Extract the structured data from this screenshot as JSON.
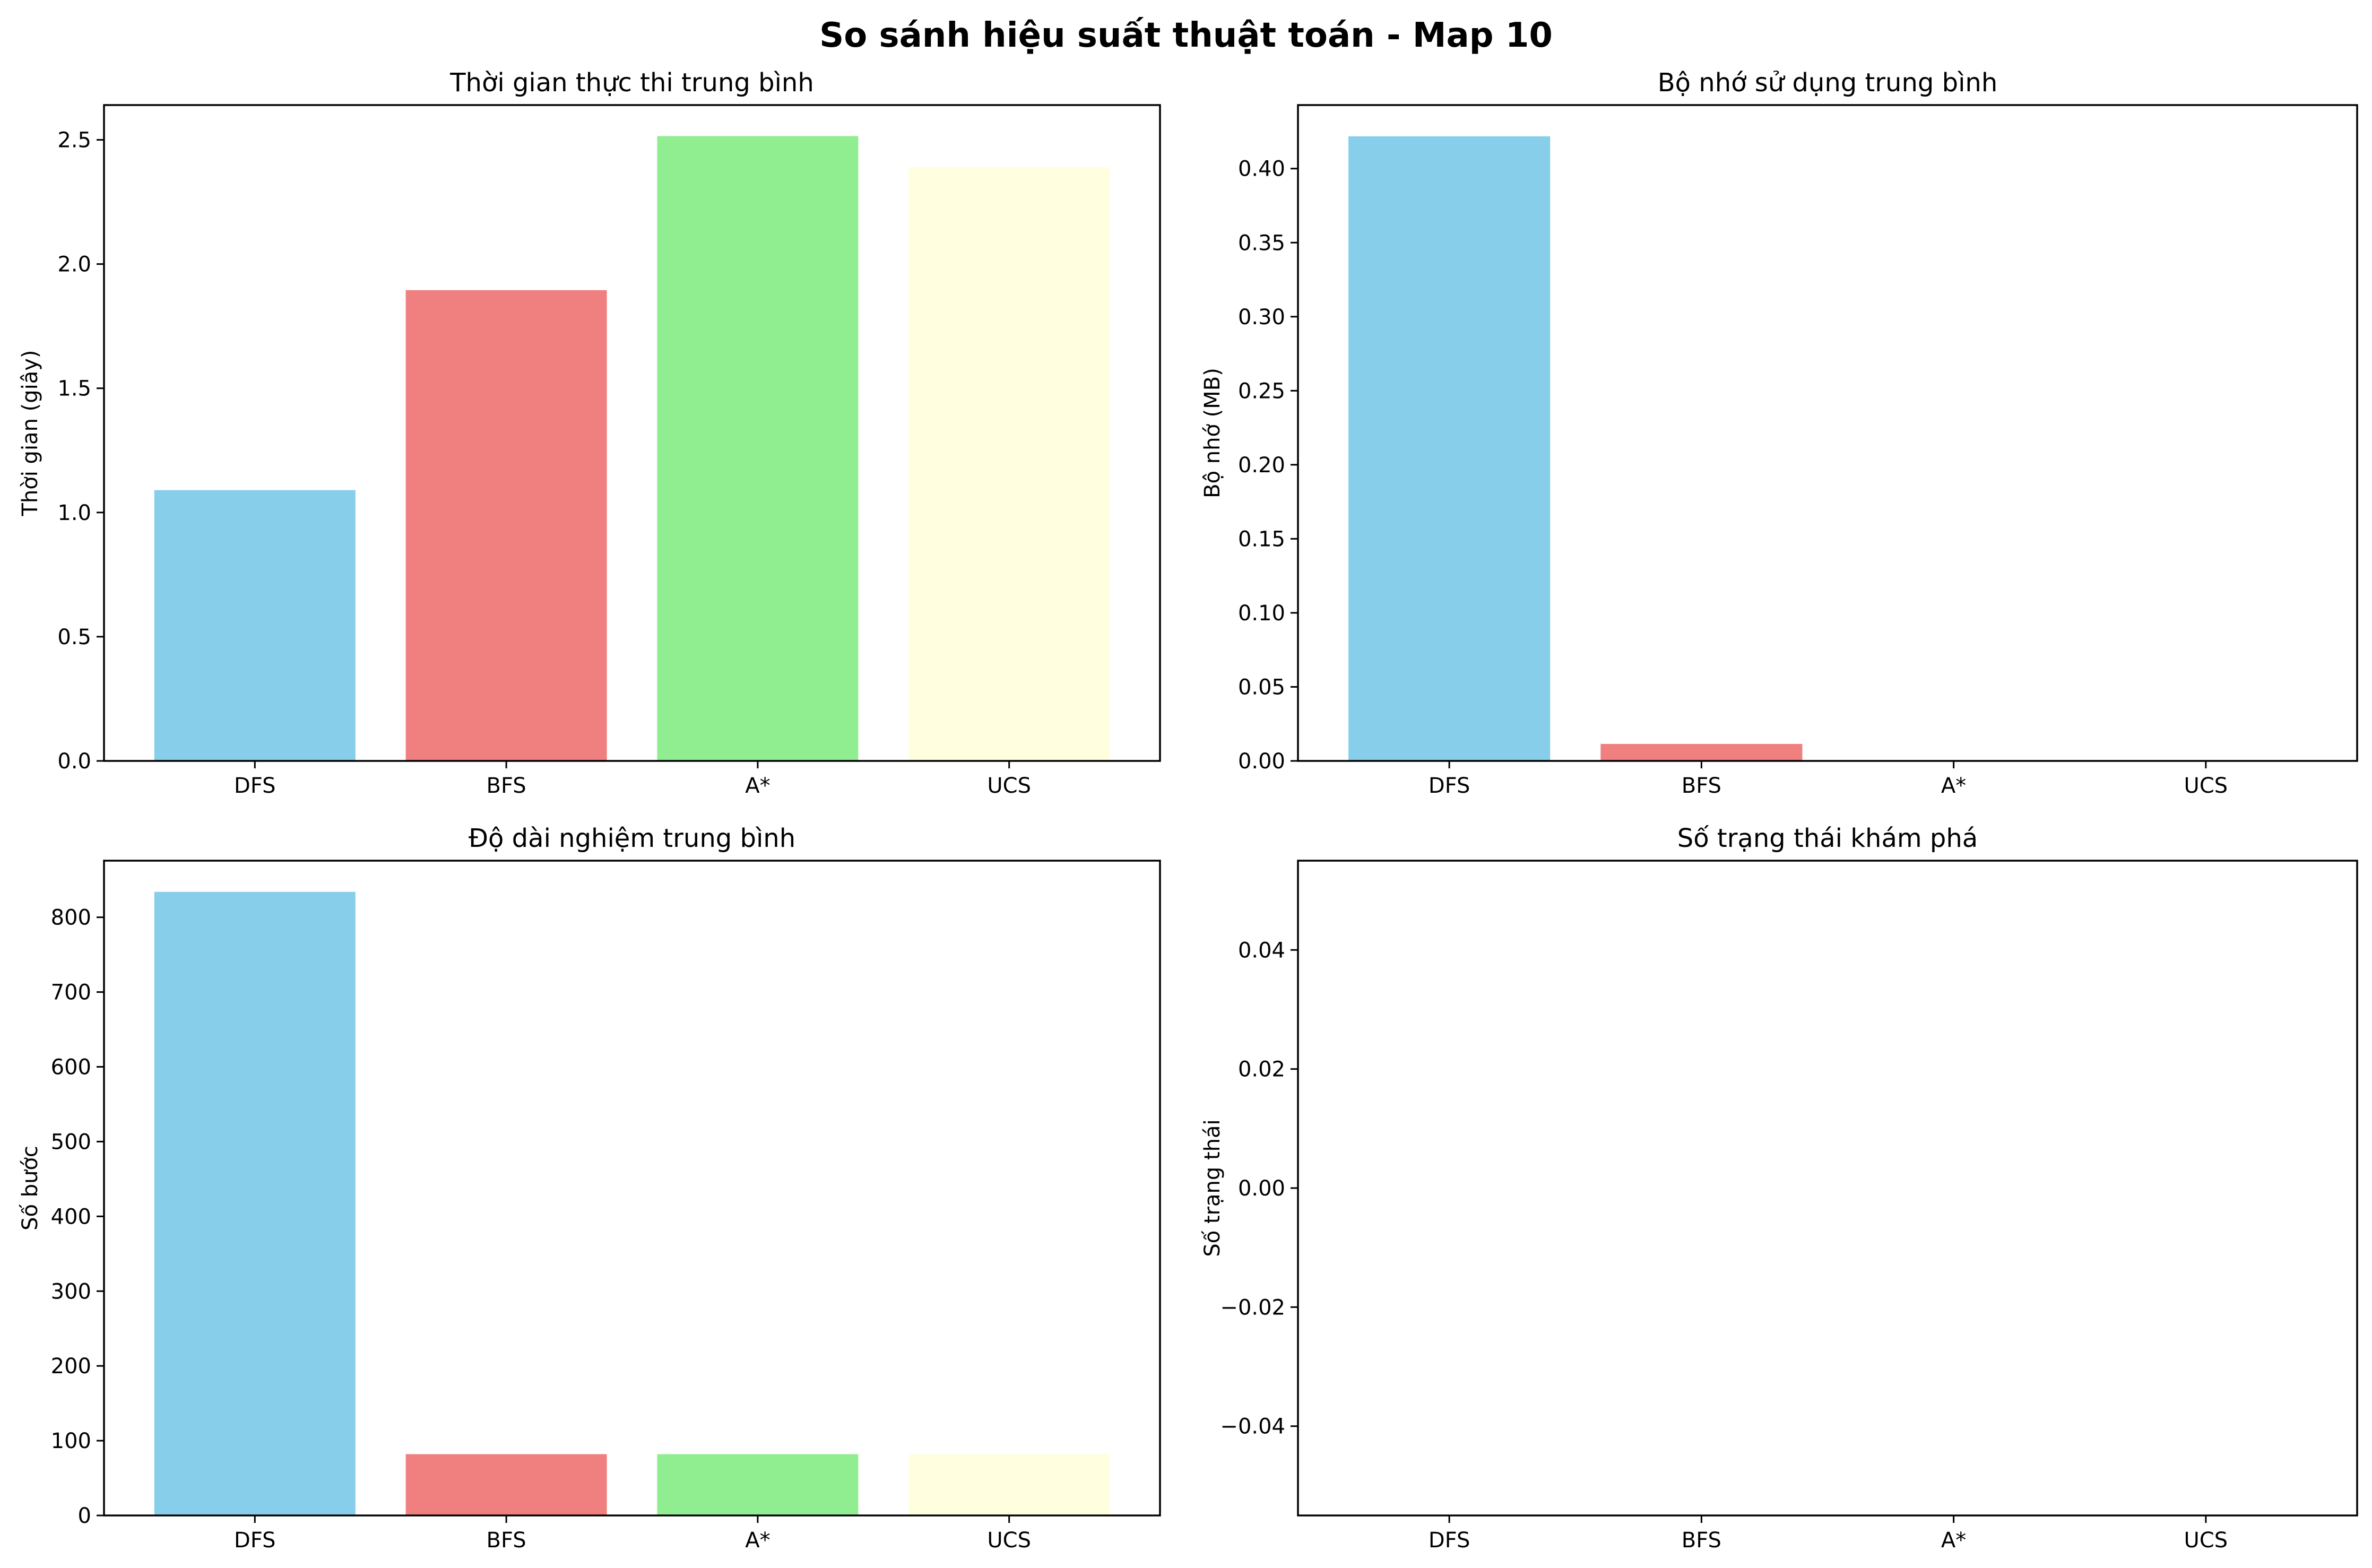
{
  "figure": {
    "title": "So sánh hiệu suất thuật toán - Map 10",
    "categories": [
      "DFS",
      "BFS",
      "A*",
      "UCS"
    ],
    "colors": [
      "#87CEEB",
      "#F08080",
      "#90EE90",
      "#FFFFE0"
    ]
  },
  "chart_data": [
    {
      "type": "bar",
      "title": "Thời gian thực thi trung bình",
      "xlabel": "",
      "ylabel": "Thời gian (giây)",
      "categories": [
        "DFS",
        "BFS",
        "A*",
        "UCS"
      ],
      "values": [
        1.09,
        1.895,
        2.515,
        2.39
      ],
      "ylim": [
        0,
        2.64
      ],
      "yticks": [
        0.0,
        0.5,
        1.0,
        1.5,
        2.0,
        2.5
      ],
      "ytick_labels": [
        "0.0",
        "0.5",
        "1.0",
        "1.5",
        "2.0",
        "2.5"
      ],
      "grid": false
    },
    {
      "type": "bar",
      "title": "Bộ nhớ sử dụng trung bình",
      "xlabel": "",
      "ylabel": "Bộ nhớ (MB)",
      "categories": [
        "DFS",
        "BFS",
        "A*",
        "UCS"
      ],
      "values": [
        0.4218,
        0.0115,
        0.0004,
        0.0002
      ],
      "ylim": [
        0,
        0.4429
      ],
      "yticks": [
        0.0,
        0.05,
        0.1,
        0.15,
        0.2,
        0.25,
        0.3,
        0.35,
        0.4
      ],
      "ytick_labels": [
        "0.00",
        "0.05",
        "0.10",
        "0.15",
        "0.20",
        "0.25",
        "0.30",
        "0.35",
        "0.40"
      ],
      "grid": false
    },
    {
      "type": "bar",
      "title": "Độ dài nghiệm trung bình",
      "xlabel": "",
      "ylabel": "Số bước",
      "categories": [
        "DFS",
        "BFS",
        "A*",
        "UCS"
      ],
      "values": [
        834,
        82,
        82,
        82
      ],
      "ylim": [
        0,
        875.7
      ],
      "yticks": [
        0,
        100,
        200,
        300,
        400,
        500,
        600,
        700,
        800
      ],
      "ytick_labels": [
        "0",
        "100",
        "200",
        "300",
        "400",
        "500",
        "600",
        "700",
        "800"
      ],
      "grid": false
    },
    {
      "type": "bar",
      "title": "Số trạng thái khám phá",
      "xlabel": "",
      "ylabel": "Số trạng thái",
      "categories": [
        "DFS",
        "BFS",
        "A*",
        "UCS"
      ],
      "values": [
        0,
        0,
        0,
        0
      ],
      "ylim": [
        -0.055,
        0.055
      ],
      "yticks": [
        -0.04,
        -0.02,
        0.0,
        0.02,
        0.04
      ],
      "ytick_labels": [
        "−0.04",
        "−0.02",
        "0.00",
        "0.02",
        "0.04"
      ],
      "grid": false
    }
  ]
}
